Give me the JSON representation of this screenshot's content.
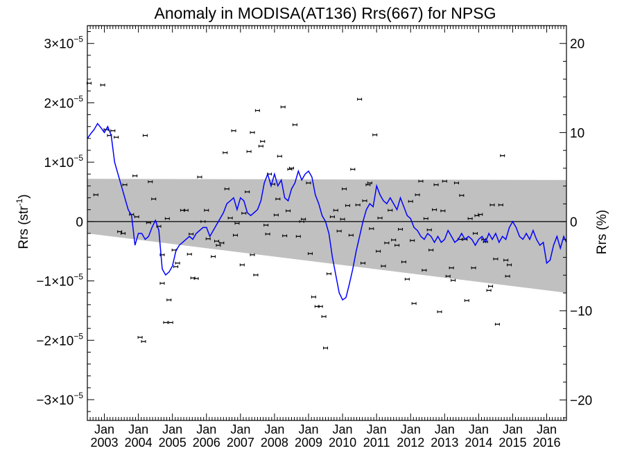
{
  "chart_data": {
    "type": "scatter",
    "title": "Anomaly in MODISA(AT136) Rrs(667) for NPSG",
    "ylabel_left": "Rrs (str",
    "ylabel_left_sup": "-1",
    "ylabel_left_close": ")",
    "ylabel_right": "Rrs (%)",
    "xlim": [
      2002.5,
      2016.58
    ],
    "ylim": [
      -3.35e-05,
      3.3e-05
    ],
    "right_ylim": [
      -22.3,
      22.0
    ],
    "left_ticks": [
      {
        "value": 3e-05,
        "mantissa": "3×10",
        "exp": "−5"
      },
      {
        "value": 2e-05,
        "mantissa": "2×10",
        "exp": "−5"
      },
      {
        "value": 1e-05,
        "mantissa": "1×10",
        "exp": "−5"
      },
      {
        "value": 0,
        "mantissa": "0",
        "exp": ""
      },
      {
        "value": -1e-05,
        "mantissa": "−1×10",
        "exp": "−5"
      },
      {
        "value": -2e-05,
        "mantissa": "−2×10",
        "exp": "−5"
      },
      {
        "value": -3e-05,
        "mantissa": "−3×10",
        "exp": "−5"
      }
    ],
    "right_ticks": [
      {
        "value": 20,
        "label": "20"
      },
      {
        "value": 10,
        "label": "10"
      },
      {
        "value": 0,
        "label": "0"
      },
      {
        "value": -10,
        "label": "−10"
      },
      {
        "value": -20,
        "label": "−20"
      }
    ],
    "x_ticks": [
      {
        "value": 2003.0,
        "month": "Jan",
        "year": "2003"
      },
      {
        "value": 2004.0,
        "month": "Jan",
        "year": "2004"
      },
      {
        "value": 2005.0,
        "month": "Jan",
        "year": "2005"
      },
      {
        "value": 2006.0,
        "month": "Jan",
        "year": "2006"
      },
      {
        "value": 2007.0,
        "month": "Jan",
        "year": "2007"
      },
      {
        "value": 2008.0,
        "month": "Jan",
        "year": "2008"
      },
      {
        "value": 2009.0,
        "month": "Jan",
        "year": "2009"
      },
      {
        "value": 2010.0,
        "month": "Jan",
        "year": "2010"
      },
      {
        "value": 2011.0,
        "month": "Jan",
        "year": "2011"
      },
      {
        "value": 2012.0,
        "month": "Jan",
        "year": "2012"
      },
      {
        "value": 2013.0,
        "month": "Jan",
        "year": "2013"
      },
      {
        "value": 2014.0,
        "month": "Jan",
        "year": "2014"
      },
      {
        "value": 2015.0,
        "month": "Jan",
        "year": "2015"
      },
      {
        "value": 2016.0,
        "month": "Jan",
        "year": "2016"
      }
    ],
    "band": {
      "color": "#c0c0c0",
      "upper": [
        [
          2002.5,
          7.2e-06
        ],
        [
          2016.58,
          7e-06
        ]
      ],
      "lower": [
        [
          2002.5,
          -2e-06
        ],
        [
          2016.58,
          -1.2e-05
        ]
      ]
    },
    "zero_line": true,
    "line_series": {
      "color": "#0000ff",
      "points": [
        [
          2002.5,
          1.4e-05
        ],
        [
          2002.6,
          1.48e-05
        ],
        [
          2002.7,
          1.55e-05
        ],
        [
          2002.8,
          1.65e-05
        ],
        [
          2002.9,
          1.58e-05
        ],
        [
          2003.0,
          1.5e-05
        ],
        [
          2003.1,
          1.6e-05
        ],
        [
          2003.2,
          1.45e-05
        ],
        [
          2003.3,
          1e-05
        ],
        [
          2003.4,
          8e-06
        ],
        [
          2003.5,
          6e-06
        ],
        [
          2003.6,
          4e-06
        ],
        [
          2003.7,
          2e-06
        ],
        [
          2003.8,
          1e-06
        ],
        [
          2003.9,
          -4e-06
        ],
        [
          2004.0,
          -2e-06
        ],
        [
          2004.1,
          -2e-06
        ],
        [
          2004.2,
          -3e-06
        ],
        [
          2004.3,
          -2.5e-06
        ],
        [
          2004.4,
          -1e-06
        ],
        [
          2004.5,
          2e-07
        ],
        [
          2004.6,
          -1.5e-06
        ],
        [
          2004.7,
          -8e-06
        ],
        [
          2004.8,
          -9e-06
        ],
        [
          2004.9,
          -8.5e-06
        ],
        [
          2005.0,
          -7.5e-06
        ],
        [
          2005.1,
          -5e-06
        ],
        [
          2005.2,
          -4e-06
        ],
        [
          2005.3,
          -3.5e-06
        ],
        [
          2005.4,
          -3e-06
        ],
        [
          2005.5,
          -2.5e-06
        ],
        [
          2005.6,
          -3e-06
        ],
        [
          2005.7,
          -2e-06
        ],
        [
          2005.8,
          -1.5e-06
        ],
        [
          2005.9,
          -1e-06
        ],
        [
          2006.0,
          -1e-06
        ],
        [
          2006.1,
          -2.5e-06
        ],
        [
          2006.2,
          -1.5e-06
        ],
        [
          2006.3,
          -5e-07
        ],
        [
          2006.4,
          5e-07
        ],
        [
          2006.5,
          1.5e-06
        ],
        [
          2006.6,
          3e-06
        ],
        [
          2006.7,
          3.5e-06
        ],
        [
          2006.8,
          4e-06
        ],
        [
          2006.9,
          2e-06
        ],
        [
          2007.0,
          4e-06
        ],
        [
          2007.1,
          3.5e-06
        ],
        [
          2007.2,
          1.5e-06
        ],
        [
          2007.3,
          1e-06
        ],
        [
          2007.4,
          1.5e-06
        ],
        [
          2007.5,
          2e-06
        ],
        [
          2007.6,
          3.5e-06
        ],
        [
          2007.7,
          6.5e-06
        ],
        [
          2007.8,
          8e-06
        ],
        [
          2007.9,
          6e-06
        ],
        [
          2008.0,
          8e-06
        ],
        [
          2008.1,
          6e-06
        ],
        [
          2008.2,
          7e-06
        ],
        [
          2008.3,
          4e-06
        ],
        [
          2008.4,
          3.5e-06
        ],
        [
          2008.5,
          5.5e-06
        ],
        [
          2008.6,
          6.5e-06
        ],
        [
          2008.7,
          8.5e-06
        ],
        [
          2008.8,
          7e-06
        ],
        [
          2008.9,
          8e-06
        ],
        [
          2009.0,
          8.5e-06
        ],
        [
          2009.1,
          7.5e-06
        ],
        [
          2009.2,
          4.5e-06
        ],
        [
          2009.3,
          3e-06
        ],
        [
          2009.4,
          1e-06
        ],
        [
          2009.5,
          0.0
        ],
        [
          2009.6,
          -2e-06
        ],
        [
          2009.7,
          -6e-06
        ],
        [
          2009.8,
          -9e-06
        ],
        [
          2009.9,
          -1.2e-05
        ],
        [
          2010.0,
          -1.32e-05
        ],
        [
          2010.1,
          -1.28e-05
        ],
        [
          2010.2,
          -1.05e-05
        ],
        [
          2010.3,
          -8e-06
        ],
        [
          2010.4,
          -5e-06
        ],
        [
          2010.5,
          -2.5e-06
        ],
        [
          2010.6,
          0.0
        ],
        [
          2010.7,
          2e-06
        ],
        [
          2010.8,
          3e-06
        ],
        [
          2010.9,
          2.5e-06
        ],
        [
          2011.0,
          6e-06
        ],
        [
          2011.1,
          4.5e-06
        ],
        [
          2011.2,
          3.5e-06
        ],
        [
          2011.3,
          3e-06
        ],
        [
          2011.4,
          4e-06
        ],
        [
          2011.5,
          3e-06
        ],
        [
          2011.6,
          2e-06
        ],
        [
          2011.7,
          4e-06
        ],
        [
          2011.8,
          2.5e-06
        ],
        [
          2011.9,
          1e-06
        ],
        [
          2012.0,
          5e-07
        ],
        [
          2012.1,
          -1e-06
        ],
        [
          2012.2,
          -1.5e-06
        ],
        [
          2012.3,
          -2.5e-06
        ],
        [
          2012.4,
          -3e-06
        ],
        [
          2012.5,
          -2e-06
        ],
        [
          2012.6,
          -2.5e-06
        ],
        [
          2012.7,
          -3.5e-06
        ],
        [
          2012.8,
          -2.5e-06
        ],
        [
          2012.9,
          -3.5e-06
        ],
        [
          2013.0,
          -3e-06
        ],
        [
          2013.1,
          -1.5e-06
        ],
        [
          2013.2,
          -2.5e-06
        ],
        [
          2013.3,
          -3.5e-06
        ],
        [
          2013.4,
          -3e-06
        ],
        [
          2013.5,
          -2e-06
        ],
        [
          2013.6,
          -3e-06
        ],
        [
          2013.7,
          -2.5e-06
        ],
        [
          2013.8,
          -3e-06
        ],
        [
          2013.9,
          -4e-06
        ],
        [
          2014.0,
          -3e-06
        ],
        [
          2014.1,
          -2.5e-06
        ],
        [
          2014.2,
          -3.5e-06
        ],
        [
          2014.3,
          -2e-06
        ],
        [
          2014.4,
          -3e-06
        ],
        [
          2014.5,
          -2e-06
        ],
        [
          2014.6,
          -3.5e-06
        ],
        [
          2014.7,
          -2.5e-06
        ],
        [
          2014.8,
          -3e-06
        ],
        [
          2014.9,
          -1e-06
        ],
        [
          2015.0,
          0.0
        ],
        [
          2015.1,
          -1e-06
        ],
        [
          2015.2,
          -2.5e-06
        ],
        [
          2015.3,
          -3e-06
        ],
        [
          2015.4,
          -2e-06
        ],
        [
          2015.5,
          -3e-06
        ],
        [
          2015.6,
          -1.5e-06
        ],
        [
          2015.7,
          -3e-06
        ],
        [
          2015.8,
          -4e-06
        ],
        [
          2015.9,
          -3.5e-06
        ],
        [
          2016.0,
          -7e-06
        ],
        [
          2016.1,
          -6.5e-06
        ],
        [
          2016.2,
          -4e-06
        ],
        [
          2016.3,
          -2.5e-06
        ],
        [
          2016.4,
          -4.5e-06
        ],
        [
          2016.5,
          -2.5e-06
        ],
        [
          2016.58,
          -3.5e-06
        ]
      ]
    },
    "scatter_series": {
      "color": "#000000",
      "points": [
        [
          2002.55,
          2.33e-05
        ],
        [
          2002.75,
          4.5e-06
        ],
        [
          2002.95,
          2.3e-05
        ],
        [
          2003.05,
          1.55e-05
        ],
        [
          2003.15,
          1.45e-05
        ],
        [
          2003.25,
          1.53e-05
        ],
        [
          2003.35,
          1.42e-05
        ],
        [
          2003.45,
          -1.7e-06
        ],
        [
          2003.55,
          -2e-06
        ],
        [
          2003.6,
          6.2e-06
        ],
        [
          2003.8,
          1.2e-06
        ],
        [
          2003.9,
          7.7e-06
        ],
        [
          2003.95,
          8e-07
        ],
        [
          2004.05,
          -1.95e-05
        ],
        [
          2004.15,
          -2.02e-05
        ],
        [
          2004.2,
          1.45e-05
        ],
        [
          2004.3,
          -2e-07
        ],
        [
          2004.35,
          6.7e-06
        ],
        [
          2004.45,
          3.8e-06
        ],
        [
          2004.6,
          -8e-07
        ],
        [
          2004.7,
          -5.6e-06
        ],
        [
          2004.7,
          -1.04e-05
        ],
        [
          2004.8,
          -1.7e-05
        ],
        [
          2004.85,
          5e-07
        ],
        [
          2004.95,
          -1.7e-05
        ],
        [
          2004.9,
          -1.32e-05
        ],
        [
          2005.05,
          -4.8e-06
        ],
        [
          2005.1,
          -7.6e-06
        ],
        [
          2005.15,
          -7e-06
        ],
        [
          2005.3,
          1.9e-06
        ],
        [
          2005.4,
          1.9e-06
        ],
        [
          2005.5,
          -5.5e-06
        ],
        [
          2005.55,
          -2.1e-06
        ],
        [
          2005.6,
          -9.5e-06
        ],
        [
          2005.7,
          -9.6e-06
        ],
        [
          2005.8,
          7.5e-06
        ],
        [
          2005.9,
          0.0
        ],
        [
          2006.0,
          1.9e-06
        ],
        [
          2006.05,
          -2.9e-06
        ],
        [
          2006.2,
          -5.9e-06
        ],
        [
          2006.3,
          -3.3e-06
        ],
        [
          2006.35,
          -4e-06
        ],
        [
          2006.45,
          -3.6e-06
        ],
        [
          2006.55,
          1.16e-05
        ],
        [
          2006.6,
          5.5e-06
        ],
        [
          2006.7,
          6e-07
        ],
        [
          2006.8,
          1.53e-05
        ],
        [
          2006.85,
          -2.3e-06
        ],
        [
          2006.9,
          -3e-07
        ],
        [
          2007.05,
          -7.3e-06
        ],
        [
          2007.1,
          1.4e-06
        ],
        [
          2007.2,
          5e-06
        ],
        [
          2007.25,
          1.18e-05
        ],
        [
          2007.35,
          -5.6e-06
        ],
        [
          2007.35,
          1.5e-05
        ],
        [
          2007.45,
          -9e-06
        ],
        [
          2007.5,
          1.87e-05
        ],
        [
          2007.6,
          1.27e-05
        ],
        [
          2007.65,
          1.35e-05
        ],
        [
          2007.75,
          -6e-07
        ],
        [
          2007.8,
          -2.1e-06
        ],
        [
          2007.85,
          8e-06
        ],
        [
          2007.95,
          6.3e-06
        ],
        [
          2008.05,
          1.1e-06
        ],
        [
          2008.1,
          3.8e-06
        ],
        [
          2008.15,
          1.1e-05
        ],
        [
          2008.25,
          1.93e-05
        ],
        [
          2008.3,
          -2.4e-06
        ],
        [
          2008.4,
          1.8e-06
        ],
        [
          2008.45,
          8.8e-06
        ],
        [
          2008.5,
          9e-06
        ],
        [
          2008.6,
          1.63e-05
        ],
        [
          2008.7,
          -2.5e-06
        ],
        [
          2008.8,
          0.0
        ],
        [
          2008.85,
          4e-07
        ],
        [
          2009.0,
          6.5e-06
        ],
        [
          2009.05,
          -5.4e-06
        ],
        [
          2009.15,
          -1.27e-05
        ],
        [
          2009.25,
          -1.43e-05
        ],
        [
          2009.35,
          -1.43e-05
        ],
        [
          2009.45,
          -1.6e-05
        ],
        [
          2009.5,
          -2.13e-05
        ],
        [
          2009.6,
          -8.8e-06
        ],
        [
          2009.7,
          8e-07
        ],
        [
          2009.8,
          1.9e-06
        ],
        [
          2009.9,
          -1.6e-06
        ],
        [
          2010.0,
          4e-07
        ],
        [
          2010.05,
          5.5e-06
        ],
        [
          2010.15,
          2.7e-06
        ],
        [
          2010.25,
          -2.3e-06
        ],
        [
          2010.3,
          8.8e-06
        ],
        [
          2010.45,
          2.8e-06
        ],
        [
          2010.5,
          2.06e-05
        ],
        [
          2010.6,
          -7e-06
        ],
        [
          2010.65,
          3.5e-06
        ],
        [
          2010.75,
          6.2e-06
        ],
        [
          2010.8,
          6.5e-06
        ],
        [
          2010.85,
          -1.2e-06
        ],
        [
          2010.95,
          1.46e-05
        ],
        [
          2011.05,
          -5e-06
        ],
        [
          2011.1,
          6e-07
        ],
        [
          2011.2,
          -7.5e-06
        ],
        [
          2011.3,
          -3.6e-06
        ],
        [
          2011.4,
          1.9e-06
        ],
        [
          2011.5,
          -3.1e-06
        ],
        [
          2011.6,
          -4e-06
        ],
        [
          2011.7,
          -1.3e-06
        ],
        [
          2011.8,
          -6.8e-06
        ],
        [
          2011.9,
          -9.7e-06
        ],
        [
          2012.0,
          3.4e-06
        ],
        [
          2012.05,
          -3.2e-06
        ],
        [
          2012.1,
          -1.38e-05
        ],
        [
          2012.2,
          4.5e-06
        ],
        [
          2012.3,
          6.8e-06
        ],
        [
          2012.4,
          -8.2e-06
        ],
        [
          2012.45,
          5e-07
        ],
        [
          2012.55,
          -1.4e-06
        ],
        [
          2012.6,
          -4.8e-06
        ],
        [
          2012.7,
          2e-06
        ],
        [
          2012.75,
          6.2e-06
        ],
        [
          2012.85,
          -1.52e-05
        ],
        [
          2012.95,
          1.8e-06
        ],
        [
          2013.0,
          6.8e-06
        ],
        [
          2013.1,
          -9.2e-06
        ],
        [
          2013.2,
          -7.8e-06
        ],
        [
          2013.25,
          -9.9e-06
        ],
        [
          2013.35,
          6.5e-06
        ],
        [
          2013.45,
          -3e-06
        ],
        [
          2013.5,
          4.4e-06
        ],
        [
          2013.6,
          -3e-06
        ],
        [
          2013.65,
          -1.33e-05
        ],
        [
          2013.75,
          5e-07
        ],
        [
          2013.85,
          -7.8e-06
        ],
        [
          2013.9,
          -2e-06
        ],
        [
          2013.95,
          1e-06
        ],
        [
          2014.05,
          1.2e-06
        ],
        [
          2014.15,
          -3e-06
        ],
        [
          2014.2,
          -3.4e-06
        ],
        [
          2014.3,
          -1.16e-05
        ],
        [
          2014.35,
          -1.09e-05
        ],
        [
          2014.4,
          2.8e-06
        ],
        [
          2014.5,
          -6.3e-06
        ],
        [
          2014.55,
          -1.73e-05
        ],
        [
          2014.65,
          2.8e-06
        ],
        [
          2014.7,
          1.11e-05
        ],
        [
          2014.8,
          -6.5e-06
        ],
        [
          2014.85,
          -9.2e-06
        ],
        [
          2014.9,
          -7.3e-06
        ]
      ]
    }
  }
}
